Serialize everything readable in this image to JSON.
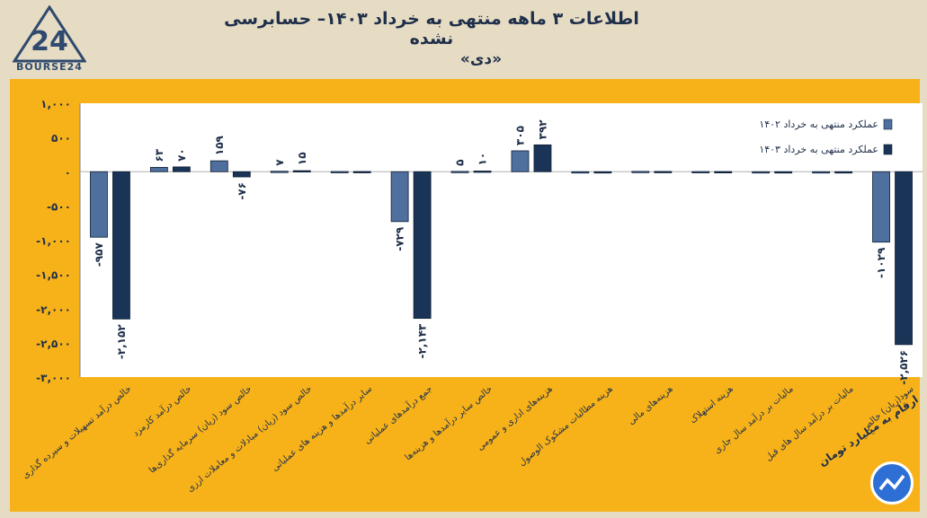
{
  "header": {
    "title": "اطلاعات ۳ ماهه منتهی به خرداد ۱۴۰۳– حسابرسی نشده",
    "subtitle": "«دی»",
    "logo_text": "BOURSE24",
    "unit_note": "ارقام به میلیارد تومان"
  },
  "colors": {
    "series_1402": "#4f6f9e",
    "series_1403": "#1a3457",
    "panel": "#f7b21a",
    "background": "#e6dcc4"
  },
  "chart_data": {
    "type": "bar",
    "ylim": [
      -3000,
      1000
    ],
    "yticks": [
      "۱,۰۰۰",
      "۵۰۰",
      "۰",
      "-۵۰۰",
      "-۱,۰۰۰",
      "-۱,۵۰۰",
      "-۲,۰۰۰",
      "-۲,۵۰۰",
      "-۳,۰۰۰"
    ],
    "ytick_values": [
      1000,
      500,
      0,
      -500,
      -1000,
      -1500,
      -2000,
      -2500,
      -3000
    ],
    "categories": [
      "خالص درآمد تسهیلات و سپرده گذاری",
      "خالص درآمد کارمزد",
      "خالص سود (زیان) سرمایه گذاری‌ها",
      "خالص سود (زیان) مبادلات و معاملات ارزی",
      "سایر درآمدها و هزینه های عملیاتی",
      "جمع درآمدهای عملیاتی",
      "خالص سایر درآمدها و هزینه‌ها",
      "هزینه‌های اداری و عمومی",
      "هزینه مطالبات مشکوک الوصول",
      "هزینه‌های مالی",
      "هزینه استهلاک",
      "مالیات بر درآمد سال جاری",
      "مالیات بر درآمد سال های قبل",
      "سود(زیان) خالص"
    ],
    "series": [
      {
        "name": "عملکرد منتهی به خرداد ۱۴۰۲",
        "values": [
          -957,
          63,
          159,
          7,
          3,
          -729,
          5,
          305,
          0,
          5,
          2,
          0,
          0,
          -1029
        ]
      },
      {
        "name": "عملکرد منتهی به خرداد ۱۴۰۳",
        "values": [
          -2152,
          70,
          -76,
          15,
          3,
          -2143,
          10,
          392,
          0,
          4,
          2,
          0,
          0,
          -2526
        ]
      }
    ],
    "data_labels": [
      [
        "-۹۵۷",
        "۶۳",
        "۱۵۹",
        "۷",
        "",
        "-۷۲۹",
        "۵",
        "۳۰۵",
        "",
        "",
        "",
        "",
        "",
        "-۱۰۲۹"
      ],
      [
        "-۲,۱۵۲",
        "۷۰",
        "-۷۶",
        "۱۵",
        "",
        "-۲,۱۴۳",
        "۱۰",
        "۳۹۲",
        "",
        "",
        "",
        "",
        "",
        "-۲,۵۲۶"
      ]
    ],
    "legend_position": "top-right",
    "grid": false
  }
}
